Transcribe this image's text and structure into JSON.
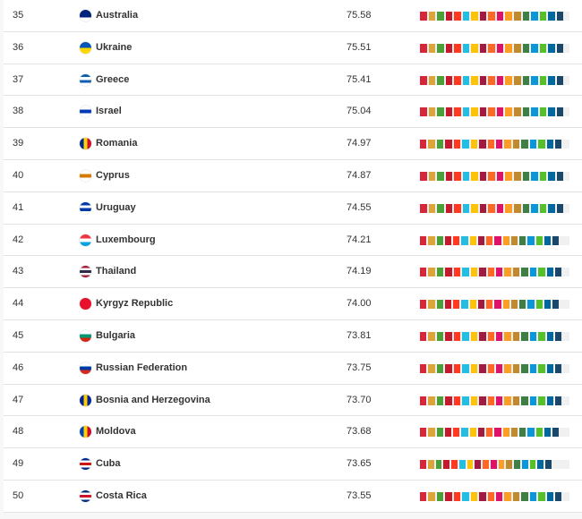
{
  "sdg_colors": [
    "#d6263a",
    "#dca53a",
    "#4c9f38",
    "#c5192d",
    "#ff3a21",
    "#26bde2",
    "#fcc30b",
    "#a21942",
    "#fd6925",
    "#dd1367",
    "#fd9d24",
    "#bf8b2e",
    "#3f7e44",
    "#0a97d9",
    "#56c02b",
    "#00689d",
    "#19486a"
  ],
  "rows": [
    {
      "rank": "35",
      "name": "Australia",
      "score": "75.58",
      "flag": [
        "#00247d",
        "#00247d",
        "#ffffff"
      ]
    },
    {
      "rank": "36",
      "name": "Ukraine",
      "score": "75.51",
      "flag": [
        "#0057b7",
        "#ffd700"
      ]
    },
    {
      "rank": "37",
      "name": "Greece",
      "score": "75.41",
      "flag": [
        "#0d5eaf",
        "#ffffff",
        "#0d5eaf",
        "#ffffff"
      ]
    },
    {
      "rank": "38",
      "name": "Israel",
      "score": "75.04",
      "flag": [
        "#ffffff",
        "#0038b8",
        "#ffffff"
      ]
    },
    {
      "rank": "39",
      "name": "Romania",
      "score": "74.97",
      "flag": [
        "#002b7f",
        "#fcd116",
        "#ce1126"
      ],
      "vertical": true
    },
    {
      "rank": "40",
      "name": "Cyprus",
      "score": "74.87",
      "flag": [
        "#ffffff",
        "#d57800",
        "#ffffff"
      ]
    },
    {
      "rank": "41",
      "name": "Uruguay",
      "score": "74.55",
      "flag": [
        "#0038a8",
        "#ffffff",
        "#0038a8",
        "#ffffff"
      ]
    },
    {
      "rank": "42",
      "name": "Luxembourg",
      "score": "74.21",
      "flag": [
        "#ef3340",
        "#ffffff",
        "#00a3e0"
      ]
    },
    {
      "rank": "43",
      "name": "Thailand",
      "score": "74.19",
      "flag": [
        "#a51931",
        "#f4f5f8",
        "#2d2a4a",
        "#f4f5f8",
        "#a51931"
      ]
    },
    {
      "rank": "44",
      "name": "Kyrgyz Republic",
      "score": "74.00",
      "flag": [
        "#e8112d",
        "#e8112d"
      ]
    },
    {
      "rank": "45",
      "name": "Bulgaria",
      "score": "73.81",
      "flag": [
        "#ffffff",
        "#00966e",
        "#d62612"
      ]
    },
    {
      "rank": "46",
      "name": "Russian Federation",
      "score": "73.75",
      "flag": [
        "#ffffff",
        "#0039a6",
        "#d52b1e"
      ]
    },
    {
      "rank": "47",
      "name": "Bosnia and Herzegovina",
      "score": "73.70",
      "flag": [
        "#002395",
        "#fecb00",
        "#002395"
      ],
      "vertical": true
    },
    {
      "rank": "48",
      "name": "Moldova",
      "score": "73.68",
      "flag": [
        "#0046ae",
        "#ffd200",
        "#cc092f"
      ],
      "vertical": true
    },
    {
      "rank": "49",
      "name": "Cuba",
      "score": "73.65",
      "flag": [
        "#002a8f",
        "#ffffff",
        "#cb1515",
        "#ffffff",
        "#002a8f"
      ]
    },
    {
      "rank": "50",
      "name": "Costa Rica",
      "score": "73.55",
      "flag": [
        "#002b7f",
        "#ffffff",
        "#ce1126",
        "#ffffff",
        "#002b7f"
      ]
    }
  ],
  "bar_fill": [
    0.96,
    0.96,
    0.96,
    0.96,
    0.95,
    0.96,
    0.96,
    0.93,
    0.95,
    0.93,
    0.95,
    0.95,
    0.95,
    0.93,
    0.88,
    0.95
  ]
}
